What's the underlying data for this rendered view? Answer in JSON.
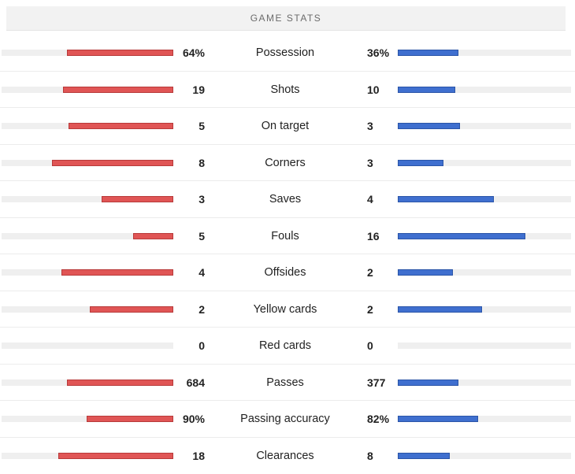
{
  "header": {
    "title": "GAME STATS"
  },
  "stats": [
    {
      "label": "Possession",
      "home": "64%",
      "away": "36%",
      "home_fill": 0.64,
      "away_fill": 0.36
    },
    {
      "label": "Shots",
      "home": "19",
      "away": "10",
      "home_fill": 0.66,
      "away_fill": 0.34
    },
    {
      "label": "On target",
      "home": "5",
      "away": "3",
      "home_fill": 0.63,
      "away_fill": 0.37
    },
    {
      "label": "Corners",
      "home": "8",
      "away": "3",
      "home_fill": 0.73,
      "away_fill": 0.27
    },
    {
      "label": "Saves",
      "home": "3",
      "away": "4",
      "home_fill": 0.43,
      "away_fill": 0.57
    },
    {
      "label": "Fouls",
      "home": "5",
      "away": "16",
      "home_fill": 0.24,
      "away_fill": 0.76
    },
    {
      "label": "Offsides",
      "home": "4",
      "away": "2",
      "home_fill": 0.67,
      "away_fill": 0.33
    },
    {
      "label": "Yellow cards",
      "home": "2",
      "away": "2",
      "home_fill": 0.5,
      "away_fill": 0.5
    },
    {
      "label": "Red cards",
      "home": "0",
      "away": "0",
      "home_fill": 0,
      "away_fill": 0
    },
    {
      "label": "Passes",
      "home": "684",
      "away": "377",
      "home_fill": 0.64,
      "away_fill": 0.36
    },
    {
      "label": "Passing accuracy",
      "home": "90%",
      "away": "82%",
      "home_fill": 0.52,
      "away_fill": 0.48
    },
    {
      "label": "Clearances",
      "home": "18",
      "away": "8",
      "home_fill": 0.69,
      "away_fill": 0.31
    }
  ],
  "colors": {
    "home": "#e05555",
    "away": "#3f6fcf",
    "track": "#efefef"
  }
}
